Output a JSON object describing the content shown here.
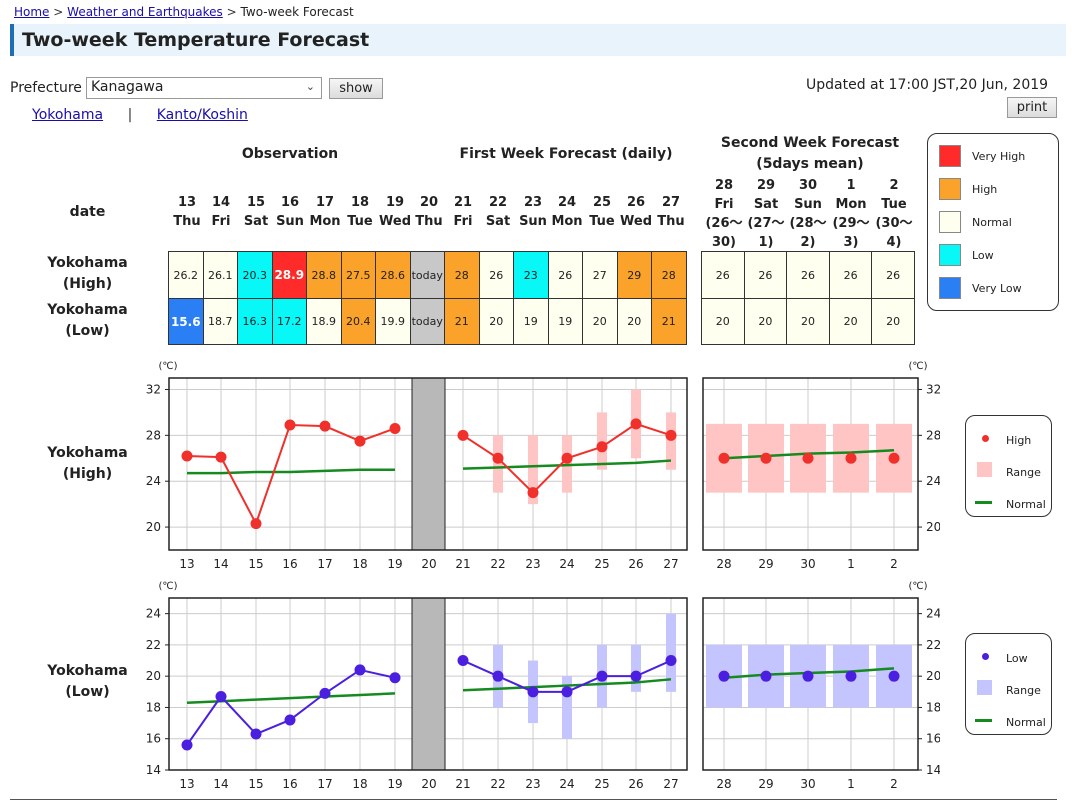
{
  "breadcrumb": {
    "home": "Home",
    "section": "Weather and Earthquakes",
    "current": "Two-week Forecast",
    "sep": ">"
  },
  "page_title": "Two-week Temperature Forecast",
  "prefecture": {
    "label": "Prefecture",
    "selected": "Kanagawa",
    "show_button": "show"
  },
  "updated": "Updated at 17:00 JST,20 Jun, 2019",
  "print_button": "print",
  "sublinks": {
    "a": "Yokohama",
    "sep": "|",
    "b": "Kanto/Koshin"
  },
  "headers": {
    "observation": "Observation",
    "first_week": "First Week Forecast (daily)",
    "second_week_1": "Second Week Forecast",
    "second_week_2": "(5days mean)",
    "date": "date"
  },
  "days": [
    {
      "d": "13",
      "w": "Thu"
    },
    {
      "d": "14",
      "w": "Fri"
    },
    {
      "d": "15",
      "w": "Sat"
    },
    {
      "d": "16",
      "w": "Sun"
    },
    {
      "d": "17",
      "w": "Mon"
    },
    {
      "d": "18",
      "w": "Tue"
    },
    {
      "d": "19",
      "w": "Wed"
    },
    {
      "d": "20",
      "w": "Thu"
    },
    {
      "d": "21",
      "w": "Fri"
    },
    {
      "d": "22",
      "w": "Sat"
    },
    {
      "d": "23",
      "w": "Sun"
    },
    {
      "d": "24",
      "w": "Mon"
    },
    {
      "d": "25",
      "w": "Tue"
    },
    {
      "d": "26",
      "w": "Wed"
    },
    {
      "d": "27",
      "w": "Thu"
    }
  ],
  "week2_days": [
    {
      "d": "28",
      "w": "Fri",
      "r1": "(26～",
      "r2": "30)"
    },
    {
      "d": "29",
      "w": "Sat",
      "r1": "(27～",
      "r2": "1)"
    },
    {
      "d": "30",
      "w": "Sun",
      "r1": "(28～",
      "r2": "2)"
    },
    {
      "d": "1",
      "w": "Mon",
      "r1": "(29～",
      "r2": "3)"
    },
    {
      "d": "2",
      "w": "Tue",
      "r1": "(30～",
      "r2": "4)"
    }
  ],
  "rows": {
    "high": {
      "l1": "Yokohama",
      "l2": "(High)",
      "cells": [
        "26.2",
        "26.1",
        "20.3",
        "28.9",
        "28.8",
        "27.5",
        "28.6",
        "today",
        "28",
        "26",
        "23",
        "26",
        "27",
        "29",
        "28"
      ],
      "cls": [
        "n",
        "n",
        "low",
        "vhigh",
        "high",
        "high",
        "high",
        "today",
        "high",
        "n",
        "low",
        "n",
        "n",
        "high",
        "high"
      ],
      "week2": [
        "26",
        "26",
        "26",
        "26",
        "26"
      ]
    },
    "low": {
      "l1": "Yokohama",
      "l2": "(Low)",
      "cells": [
        "15.6",
        "18.7",
        "16.3",
        "17.2",
        "18.9",
        "20.4",
        "19.9",
        "today",
        "21",
        "20",
        "19",
        "19",
        "20",
        "20",
        "21"
      ],
      "cls": [
        "vlow",
        "n",
        "low",
        "low",
        "n",
        "high",
        "n",
        "today",
        "high",
        "n",
        "n",
        "n",
        "n",
        "n",
        "high"
      ],
      "week2": [
        "20",
        "20",
        "20",
        "20",
        "20"
      ]
    }
  },
  "colors": {
    "vhigh": "#ff2b2b",
    "high": "#fba22a",
    "n": "#fffff0",
    "low": "#08f7f7",
    "vlow": "#2b7ff5",
    "today": "#c8c8c8",
    "high_line": "#f0302a",
    "low_line": "#4a1fe0",
    "normal": "#158a1e",
    "range_high": "#ffc4c4",
    "range_low": "#c4c4ff"
  },
  "table_legend": [
    {
      "label": "Very High",
      "key": "vhigh"
    },
    {
      "label": "High",
      "key": "high"
    },
    {
      "label": "Normal",
      "key": "n"
    },
    {
      "label": "Low",
      "key": "low"
    },
    {
      "label": "Very Low",
      "key": "vlow"
    }
  ],
  "chart_legend_high": {
    "point": "High",
    "range": "Range",
    "normal": "Normal"
  },
  "chart_legend_low": {
    "point": "Low",
    "range": "Range",
    "normal": "Normal"
  },
  "chart_data": [
    {
      "type": "line",
      "title": "",
      "series_label_1": "Yokohama",
      "series_label_2": "(High)",
      "unit": "(℃)",
      "x": [
        "13",
        "14",
        "15",
        "16",
        "17",
        "18",
        "19",
        "20",
        "21",
        "22",
        "23",
        "24",
        "25",
        "26",
        "27"
      ],
      "x2": [
        {
          "d": "28",
          "r": "(26–30)"
        },
        {
          "d": "29",
          "r": "(27–1)"
        },
        {
          "d": "30",
          "r": "(28–2)"
        },
        {
          "d": "1",
          "r": "(29–3)"
        },
        {
          "d": "2",
          "r": "(30–4)"
        }
      ],
      "ylim": [
        18,
        33
      ],
      "yticks": [
        20,
        24,
        28,
        32
      ],
      "observed": [
        26.2,
        26.1,
        20.3,
        28.9,
        28.8,
        27.5,
        28.6
      ],
      "normal_obs": [
        24.7,
        24.7,
        24.8,
        24.8,
        24.9,
        25.0,
        25.0
      ],
      "forecast": [
        28,
        26,
        23,
        26,
        27,
        29,
        28
      ],
      "forecast_range": [
        null,
        [
          23,
          28
        ],
        [
          22,
          28
        ],
        [
          23,
          28
        ],
        [
          25,
          30
        ],
        [
          26,
          32
        ],
        [
          25,
          30
        ]
      ],
      "normal_fc": [
        25.1,
        25.2,
        25.3,
        25.4,
        25.5,
        25.6,
        25.8
      ],
      "week2": [
        26,
        26,
        26,
        26,
        26
      ],
      "week2_range": [
        [
          23,
          29
        ],
        [
          23,
          29
        ],
        [
          23,
          29
        ],
        [
          23,
          29
        ],
        [
          23,
          29
        ]
      ],
      "week2_normal": [
        26.0,
        26.2,
        26.4,
        26.5,
        26.7
      ]
    },
    {
      "type": "line",
      "title": "",
      "series_label_1": "Yokohama",
      "series_label_2": "(Low)",
      "unit": "(℃)",
      "x": [
        "13",
        "14",
        "15",
        "16",
        "17",
        "18",
        "19",
        "20",
        "21",
        "22",
        "23",
        "24",
        "25",
        "26",
        "27"
      ],
      "x2": [
        {
          "d": "28",
          "r": "(26–30)"
        },
        {
          "d": "29",
          "r": "(27–1)"
        },
        {
          "d": "30",
          "r": "(28–2)"
        },
        {
          "d": "1",
          "r": "(29–3)"
        },
        {
          "d": "2",
          "r": "(30–4)"
        }
      ],
      "ylim": [
        14,
        25
      ],
      "yticks": [
        14,
        16,
        18,
        20,
        22,
        24
      ],
      "observed": [
        15.6,
        18.7,
        16.3,
        17.2,
        18.9,
        20.4,
        19.9
      ],
      "normal_obs": [
        18.3,
        18.4,
        18.5,
        18.6,
        18.7,
        18.8,
        18.9
      ],
      "forecast": [
        21,
        20,
        19,
        19,
        20,
        20,
        21
      ],
      "forecast_range": [
        null,
        [
          18,
          22
        ],
        [
          17,
          21
        ],
        [
          16,
          20
        ],
        [
          18,
          22
        ],
        [
          19,
          22
        ],
        [
          19,
          24
        ]
      ],
      "normal_fc": [
        19.1,
        19.2,
        19.3,
        19.4,
        19.5,
        19.6,
        19.8
      ],
      "week2": [
        20,
        20,
        20,
        20,
        20
      ],
      "week2_range": [
        [
          18,
          22
        ],
        [
          18,
          22
        ],
        [
          18,
          22
        ],
        [
          18,
          22
        ],
        [
          18,
          22
        ]
      ],
      "week2_normal": [
        19.9,
        20.1,
        20.2,
        20.3,
        20.5
      ]
    }
  ]
}
